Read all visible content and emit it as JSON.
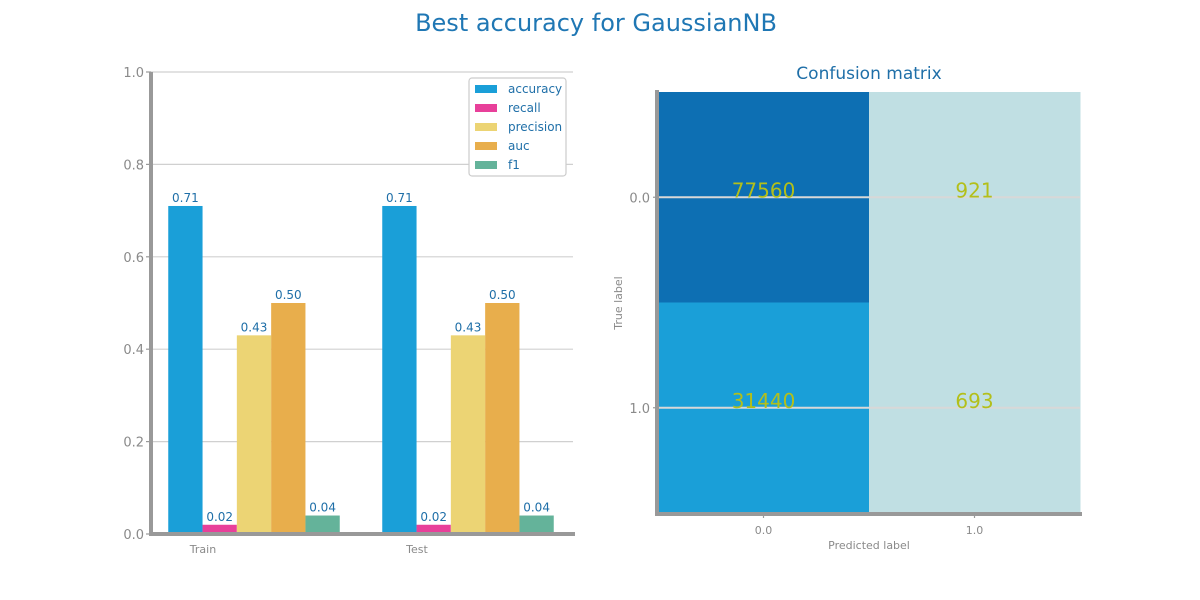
{
  "figure": {
    "title": "Best accuracy for GaussianNB"
  },
  "chart_data": [
    {
      "type": "bar",
      "title": "",
      "xlabel": "",
      "ylabel": "",
      "ylim": [
        0,
        1.0
      ],
      "yticks": [
        "0.0",
        "0.2",
        "0.4",
        "0.6",
        "0.8",
        "1.0"
      ],
      "categories": [
        "Train",
        "Test"
      ],
      "legend_position": "top-right",
      "grid": true,
      "series": [
        {
          "name": "accuracy",
          "color": "#1a9fd8",
          "values": [
            0.71,
            0.71
          ],
          "labels": [
            "0.71",
            "0.71"
          ]
        },
        {
          "name": "recall",
          "color": "#e8409a",
          "values": [
            0.02,
            0.02
          ],
          "labels": [
            "0.02",
            "0.02"
          ]
        },
        {
          "name": "precision",
          "color": "#ecd474",
          "values": [
            0.43,
            0.43
          ],
          "labels": [
            "0.43",
            "0.43"
          ]
        },
        {
          "name": "auc",
          "color": "#e8ae4c",
          "values": [
            0.5,
            0.5
          ],
          "labels": [
            "0.50",
            "0.50"
          ]
        },
        {
          "name": "f1",
          "color": "#64b39a",
          "values": [
            0.04,
            0.04
          ],
          "labels": [
            "0.04",
            "0.04"
          ]
        }
      ]
    },
    {
      "type": "heatmap",
      "title": "Confusion matrix",
      "xlabel": "Predicted label",
      "ylabel": "True label",
      "x_categories": [
        "0.0",
        "1.0"
      ],
      "y_categories": [
        "0.0",
        "1.0"
      ],
      "values": [
        [
          77560,
          921
        ],
        [
          31440,
          693
        ]
      ],
      "labels": [
        [
          "77560",
          "921"
        ],
        [
          "31440",
          "693"
        ]
      ],
      "colors": [
        [
          "#0d6fb3",
          "#c0dfe3"
        ],
        [
          "#1a9fd8",
          "#c0dfe3"
        ]
      ],
      "annotation_color": "#b3bf1a"
    }
  ]
}
